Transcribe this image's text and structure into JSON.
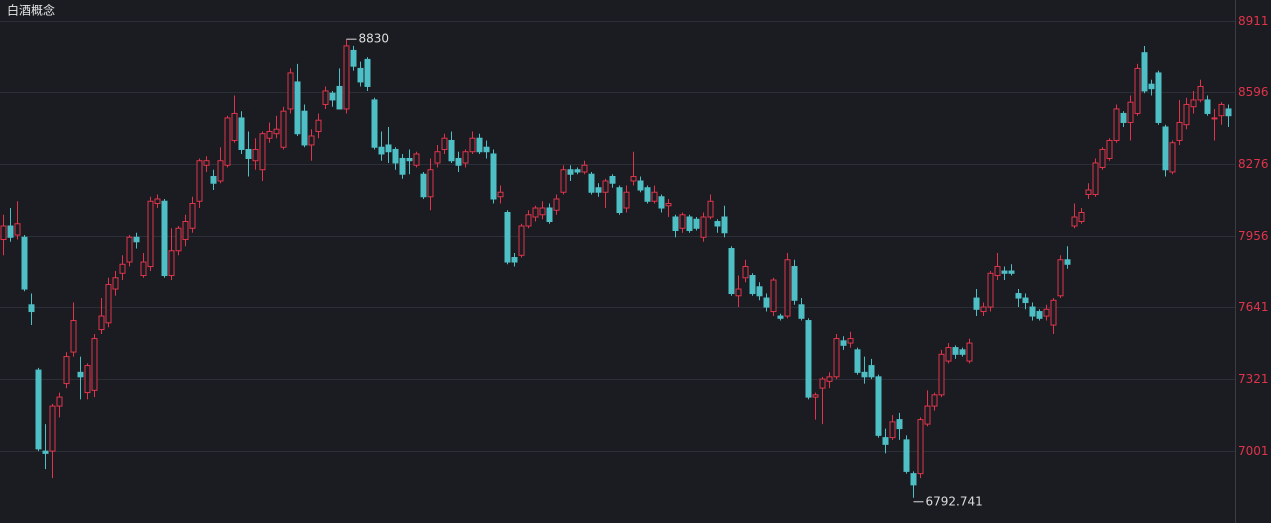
{
  "chart_data": {
    "type": "candlestick",
    "title": "白酒概念",
    "up_color": "#e0344b",
    "down_color": "#4fbfc6",
    "grid": true,
    "ylim": [
      6694,
      9004
    ],
    "yticks": [
      8911,
      8596,
      8276,
      7956,
      7641,
      7321,
      7001
    ],
    "ohlc": [
      [
        7940,
        8050,
        7870,
        8000
      ],
      [
        8000,
        8080,
        7930,
        7950
      ],
      [
        7960,
        8110,
        7940,
        8010
      ],
      [
        7950,
        7960,
        7710,
        7720
      ],
      [
        7650,
        7700,
        7560,
        7620
      ],
      [
        7360,
        7370,
        7000,
        7010
      ],
      [
        7000,
        7120,
        6920,
        6990
      ],
      [
        7000,
        7210,
        6880,
        7200
      ],
      [
        7200,
        7260,
        7150,
        7240
      ],
      [
        7300,
        7440,
        7280,
        7420
      ],
      [
        7440,
        7660,
        7420,
        7580
      ],
      [
        7350,
        7420,
        7230,
        7330
      ],
      [
        7260,
        7390,
        7230,
        7380
      ],
      [
        7270,
        7520,
        7240,
        7500
      ],
      [
        7540,
        7680,
        7520,
        7600
      ],
      [
        7570,
        7770,
        7550,
        7740
      ],
      [
        7720,
        7800,
        7690,
        7770
      ],
      [
        7790,
        7870,
        7760,
        7830
      ],
      [
        7840,
        7960,
        7820,
        7950
      ],
      [
        7950,
        7970,
        7900,
        7930
      ],
      [
        7780,
        7880,
        7770,
        7840
      ],
      [
        7820,
        8130,
        7800,
        8110
      ],
      [
        8100,
        8140,
        8080,
        8120
      ],
      [
        8110,
        8120,
        7770,
        7780
      ],
      [
        7780,
        7990,
        7760,
        7890
      ],
      [
        7890,
        8000,
        7870,
        7990
      ],
      [
        7940,
        8050,
        7910,
        8020
      ],
      [
        7990,
        8130,
        7970,
        8100
      ],
      [
        8110,
        8300,
        8080,
        8290
      ],
      [
        8270,
        8310,
        8240,
        8290
      ],
      [
        8220,
        8250,
        8160,
        8190
      ],
      [
        8200,
        8350,
        8190,
        8290
      ],
      [
        8270,
        8490,
        8260,
        8480
      ],
      [
        8380,
        8580,
        8370,
        8500
      ],
      [
        8480,
        8510,
        8320,
        8340
      ],
      [
        8340,
        8420,
        8220,
        8300
      ],
      [
        8290,
        8390,
        8250,
        8340
      ],
      [
        8250,
        8420,
        8200,
        8410
      ],
      [
        8390,
        8460,
        8370,
        8420
      ],
      [
        8410,
        8490,
        8390,
        8430
      ],
      [
        8350,
        8530,
        8340,
        8510
      ],
      [
        8520,
        8700,
        8500,
        8680
      ],
      [
        8640,
        8720,
        8400,
        8410
      ],
      [
        8510,
        8540,
        8350,
        8360
      ],
      [
        8360,
        8430,
        8290,
        8400
      ],
      [
        8420,
        8500,
        8390,
        8470
      ],
      [
        8540,
        8620,
        8520,
        8600
      ],
      [
        8590,
        8600,
        8530,
        8560
      ],
      [
        8620,
        8700,
        8520,
        8520
      ],
      [
        8520,
        8830,
        8500,
        8800
      ],
      [
        8780,
        8800,
        8690,
        8710
      ],
      [
        8700,
        8730,
        8620,
        8640
      ],
      [
        8740,
        8750,
        8600,
        8620
      ],
      [
        8560,
        8570,
        8340,
        8350
      ],
      [
        8350,
        8420,
        8290,
        8320
      ],
      [
        8360,
        8440,
        8280,
        8330
      ],
      [
        8340,
        8350,
        8250,
        8280
      ],
      [
        8300,
        8320,
        8210,
        8230
      ],
      [
        8300,
        8340,
        8230,
        8290
      ],
      [
        8270,
        8330,
        8260,
        8320
      ],
      [
        8230,
        8240,
        8120,
        8130
      ],
      [
        8130,
        8300,
        8070,
        8250
      ],
      [
        8280,
        8360,
        8260,
        8330
      ],
      [
        8340,
        8410,
        8320,
        8390
      ],
      [
        8380,
        8420,
        8280,
        8290
      ],
      [
        8300,
        8330,
        8240,
        8270
      ],
      [
        8280,
        8340,
        8260,
        8330
      ],
      [
        8330,
        8420,
        8320,
        8390
      ],
      [
        8390,
        8410,
        8320,
        8330
      ],
      [
        8350,
        8380,
        8300,
        8330
      ],
      [
        8320,
        8340,
        8100,
        8120
      ],
      [
        8130,
        8180,
        8100,
        8150
      ],
      [
        8060,
        8070,
        7830,
        7840
      ],
      [
        7860,
        7880,
        7820,
        7840
      ],
      [
        7870,
        8010,
        7860,
        8000
      ],
      [
        8000,
        8070,
        7990,
        8050
      ],
      [
        8040,
        8090,
        8020,
        8080
      ],
      [
        8050,
        8110,
        8030,
        8080
      ],
      [
        8080,
        8100,
        8010,
        8020
      ],
      [
        8070,
        8140,
        8050,
        8120
      ],
      [
        8150,
        8270,
        8140,
        8250
      ],
      [
        8250,
        8270,
        8200,
        8230
      ],
      [
        8250,
        8260,
        8230,
        8240
      ],
      [
        8240,
        8290,
        8230,
        8270
      ],
      [
        8230,
        8240,
        8140,
        8150
      ],
      [
        8170,
        8190,
        8130,
        8150
      ],
      [
        8150,
        8210,
        8080,
        8200
      ],
      [
        8220,
        8230,
        8170,
        8190
      ],
      [
        8170,
        8180,
        8050,
        8060
      ],
      [
        8080,
        8180,
        8060,
        8150
      ],
      [
        8200,
        8330,
        8180,
        8220
      ],
      [
        8200,
        8220,
        8150,
        8160
      ],
      [
        8170,
        8180,
        8100,
        8110
      ],
      [
        8110,
        8180,
        8100,
        8150
      ],
      [
        8130,
        8140,
        8060,
        8080
      ],
      [
        8090,
        8120,
        8040,
        8100
      ],
      [
        8040,
        8050,
        7950,
        7980
      ],
      [
        7990,
        8060,
        7970,
        8050
      ],
      [
        8040,
        8050,
        7970,
        7980
      ],
      [
        8030,
        8040,
        7980,
        7990
      ],
      [
        7950,
        8060,
        7930,
        8040
      ],
      [
        8040,
        8140,
        8030,
        8110
      ],
      [
        8020,
        8030,
        7970,
        8000
      ],
      [
        8040,
        8090,
        7950,
        7970
      ],
      [
        7900,
        7910,
        7690,
        7700
      ],
      [
        7690,
        7780,
        7640,
        7720
      ],
      [
        7770,
        7850,
        7750,
        7820
      ],
      [
        7780,
        7790,
        7690,
        7700
      ],
      [
        7730,
        7750,
        7670,
        7690
      ],
      [
        7680,
        7700,
        7620,
        7640
      ],
      [
        7620,
        7770,
        7600,
        7760
      ],
      [
        7600,
        7610,
        7580,
        7590
      ],
      [
        7600,
        7880,
        7590,
        7850
      ],
      [
        7820,
        7850,
        7650,
        7670
      ],
      [
        7650,
        7680,
        7580,
        7590
      ],
      [
        7580,
        7590,
        7230,
        7240
      ],
      [
        7240,
        7260,
        7140,
        7250
      ],
      [
        7280,
        7330,
        7120,
        7320
      ],
      [
        7310,
        7350,
        7280,
        7330
      ],
      [
        7330,
        7520,
        7320,
        7500
      ],
      [
        7490,
        7510,
        7450,
        7470
      ],
      [
        7480,
        7530,
        7460,
        7500
      ],
      [
        7450,
        7460,
        7340,
        7350
      ],
      [
        7350,
        7420,
        7300,
        7330
      ],
      [
        7380,
        7410,
        7320,
        7330
      ],
      [
        7330,
        7340,
        7060,
        7070
      ],
      [
        7060,
        7100,
        6990,
        7030
      ],
      [
        7060,
        7160,
        7050,
        7130
      ],
      [
        7140,
        7170,
        7050,
        7100
      ],
      [
        7050,
        7070,
        6900,
        6910
      ],
      [
        6900,
        6910,
        6792.741,
        6850
      ],
      [
        6900,
        7150,
        6880,
        7140
      ],
      [
        7120,
        7270,
        7110,
        7200
      ],
      [
        7200,
        7260,
        7180,
        7250
      ],
      [
        7250,
        7450,
        7240,
        7430
      ],
      [
        7400,
        7480,
        7390,
        7460
      ],
      [
        7460,
        7470,
        7410,
        7430
      ],
      [
        7450,
        7460,
        7420,
        7430
      ],
      [
        7400,
        7500,
        7390,
        7480
      ],
      [
        7680,
        7720,
        7600,
        7630
      ],
      [
        7620,
        7660,
        7600,
        7640
      ],
      [
        7640,
        7800,
        7620,
        7790
      ],
      [
        7780,
        7880,
        7760,
        7820
      ],
      [
        7800,
        7820,
        7760,
        7790
      ],
      [
        7800,
        7830,
        7780,
        7790
      ],
      [
        7700,
        7720,
        7640,
        7680
      ],
      [
        7680,
        7700,
        7630,
        7660
      ],
      [
        7640,
        7660,
        7580,
        7600
      ],
      [
        7620,
        7630,
        7580,
        7590
      ],
      [
        7600,
        7650,
        7580,
        7630
      ],
      [
        7560,
        7680,
        7520,
        7670
      ],
      [
        7690,
        7870,
        7680,
        7850
      ],
      [
        7850,
        7910,
        7810,
        7830
      ],
      [
        8000,
        8100,
        7990,
        8040
      ],
      [
        8020,
        8080,
        8010,
        8060
      ],
      [
        8140,
        8190,
        8120,
        8160
      ],
      [
        8140,
        8300,
        8130,
        8280
      ],
      [
        8260,
        8350,
        8250,
        8340
      ],
      [
        8300,
        8390,
        8290,
        8380
      ],
      [
        8380,
        8540,
        8370,
        8520
      ],
      [
        8500,
        8510,
        8440,
        8460
      ],
      [
        8460,
        8580,
        8380,
        8550
      ],
      [
        8500,
        8720,
        8490,
        8700
      ],
      [
        8770,
        8799.499,
        8590,
        8600
      ],
      [
        8630,
        8650,
        8580,
        8610
      ],
      [
        8680,
        8690,
        8450,
        8460
      ],
      [
        8440,
        8450,
        8220,
        8250
      ],
      [
        8240,
        8380,
        8230,
        8370
      ],
      [
        8380,
        8560,
        8360,
        8460
      ],
      [
        8450,
        8570,
        8430,
        8540
      ],
      [
        8530,
        8600,
        8500,
        8560
      ],
      [
        8560,
        8650,
        8550,
        8620
      ],
      [
        8560,
        8580,
        8490,
        8500
      ],
      [
        8480,
        8520,
        8380,
        8480
      ],
      [
        8490,
        8550,
        8450,
        8540
      ],
      [
        8520,
        8540,
        8440,
        8490
      ]
    ]
  }
}
